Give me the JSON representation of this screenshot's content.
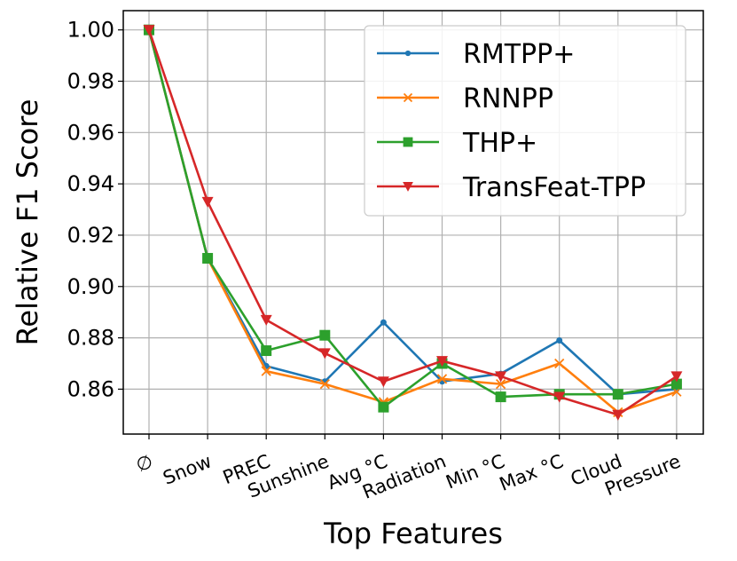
{
  "chart_data": {
    "type": "line",
    "title": "",
    "xlabel": "Top Features",
    "ylabel": "Relative F1 Score",
    "categories": [
      "∅",
      "Snow",
      "PREC",
      "Sunshine",
      "Avg °C",
      "Radiation",
      "Min °C",
      "Max °C",
      "Cloud",
      "Pressure"
    ],
    "ylim": [
      0.8425,
      1.0075
    ],
    "yticks": [
      "0.86",
      "0.88",
      "0.90",
      "0.92",
      "0.94",
      "0.96",
      "0.98",
      "1.00"
    ],
    "grid": true,
    "legend_position": "top-right",
    "series": [
      {
        "name": "RMTPP+",
        "color": "#1f77b4",
        "marker": "dot",
        "values": [
          1.0,
          0.911,
          0.869,
          0.863,
          0.886,
          0.863,
          0.866,
          0.879,
          0.858,
          0.86
        ]
      },
      {
        "name": "RNNPP",
        "color": "#ff7f0e",
        "marker": "x",
        "values": [
          1.0,
          0.911,
          0.867,
          0.862,
          0.855,
          0.864,
          0.862,
          0.87,
          0.851,
          0.859
        ]
      },
      {
        "name": "THP+",
        "color": "#2ca02c",
        "marker": "square",
        "values": [
          1.0,
          0.911,
          0.875,
          0.881,
          0.853,
          0.87,
          0.857,
          0.858,
          0.858,
          0.862
        ]
      },
      {
        "name": "TransFeat-TPP",
        "color": "#d62728",
        "marker": "triangle-down",
        "values": [
          1.0,
          0.933,
          0.887,
          0.874,
          0.863,
          0.871,
          0.865,
          0.857,
          0.85,
          0.865
        ]
      }
    ]
  }
}
